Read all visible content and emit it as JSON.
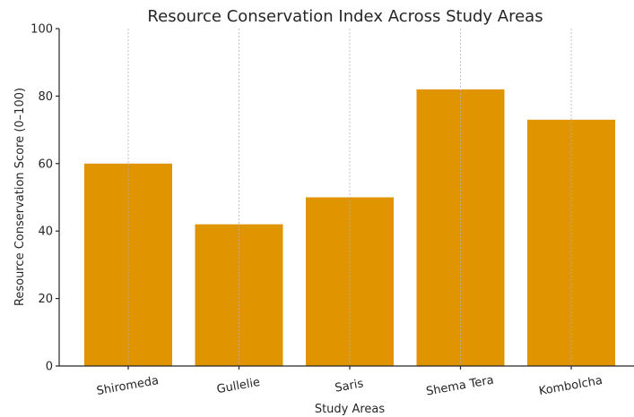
{
  "chart_data": {
    "type": "bar",
    "title": "Resource Conservation Index Across Study Areas",
    "xlabel": "Study Areas",
    "ylabel": "Resource Conservation Score (0–100)",
    "categories": [
      "Shiromeda",
      "Gullelie",
      "Saris",
      "Shema Tera",
      "Kombolcha"
    ],
    "values": [
      60,
      42,
      50,
      82,
      73
    ],
    "ylim": [
      0,
      100
    ],
    "yticks": [
      0,
      20,
      40,
      60,
      80,
      100
    ],
    "grid": "x-dashed",
    "bar_color": "#e09500"
  }
}
